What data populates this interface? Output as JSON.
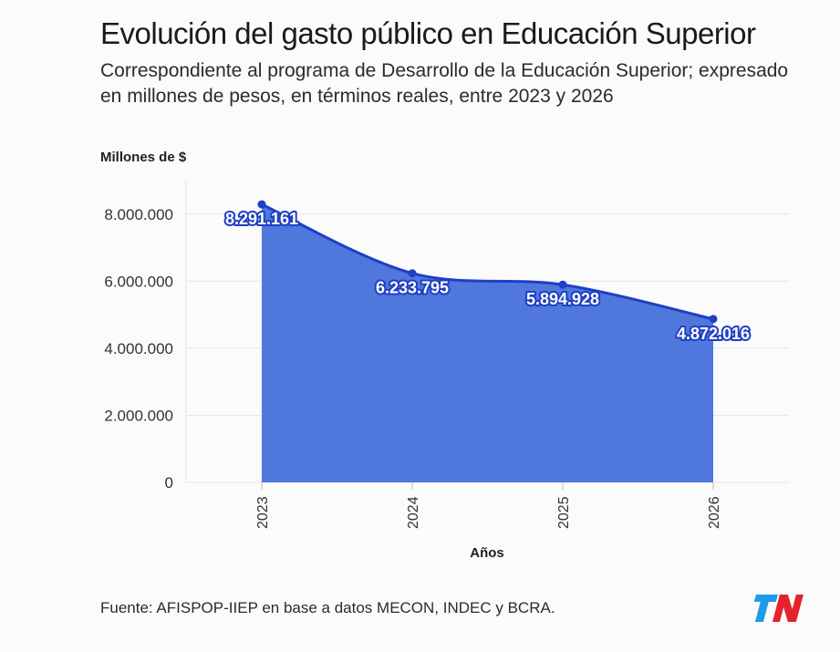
{
  "title": "Evolución del gasto público en Educación Superior",
  "subtitle": "Correspondiente al programa de Desarrollo de la Educación Superior; expresado en millones de pesos, en términos reales, entre 2023 y 2026",
  "source": "Fuente: AFISPOP-IIEP en base a datos MECON, INDEC y BCRA.",
  "logo_text": "TN",
  "colors": {
    "area_fill": "#4f77dc",
    "line": "#1f3fc4",
    "label_outline": "#1f3fc4",
    "grid": "#e6e6e6"
  },
  "chart_data": {
    "type": "area",
    "x": [
      "2023",
      "2024",
      "2025",
      "2026"
    ],
    "series": [
      {
        "values": [
          8291161,
          6233795,
          5894928,
          4872016
        ]
      }
    ],
    "data_labels": [
      "8.291.161",
      "6.233.795",
      "5.894.928",
      "4.872.016"
    ],
    "ylabel": "Millones de $",
    "xlabel": "Años",
    "ylim": [
      0,
      9000000
    ],
    "yticks": [
      0,
      2000000,
      4000000,
      6000000,
      8000000
    ],
    "ytick_labels": [
      "0",
      "2.000.000",
      "4.000.000",
      "6.000.000",
      "8.000.000"
    ],
    "grid": true,
    "legend": "none"
  }
}
